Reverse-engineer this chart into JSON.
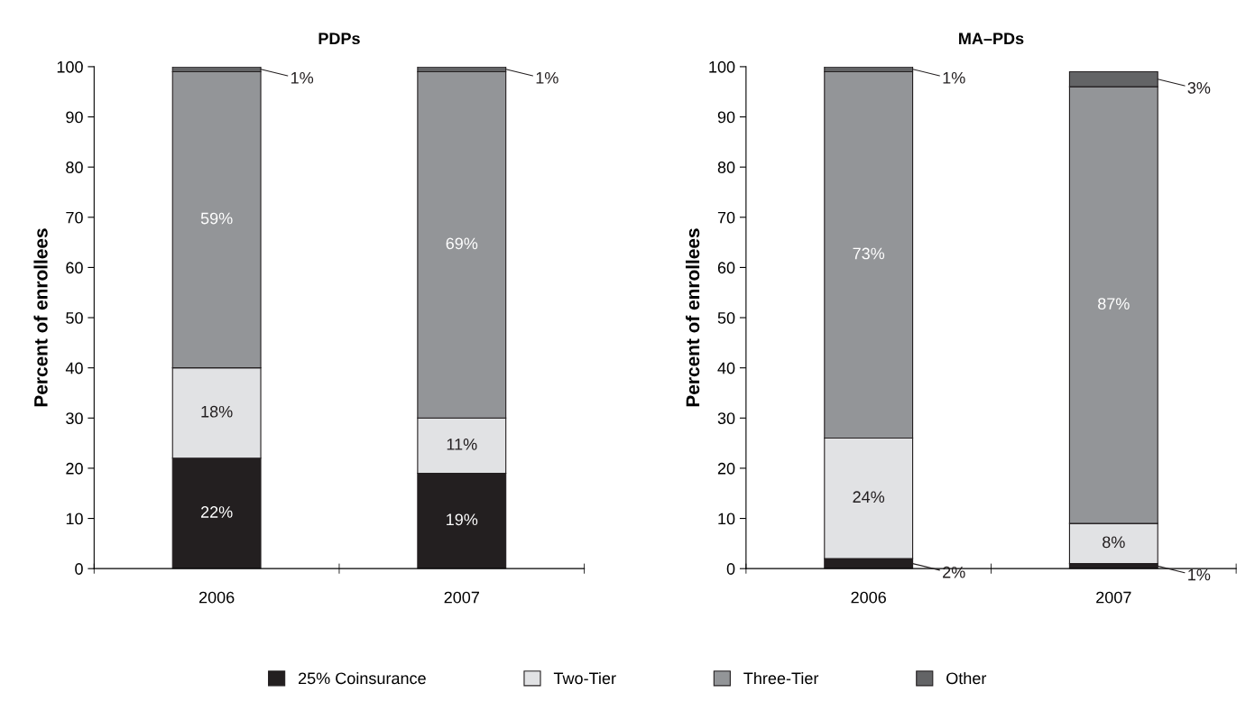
{
  "chart_data": [
    {
      "type": "bar",
      "title": "PDPs",
      "ylabel": "Percent of enrollees",
      "categories": [
        "2006",
        "2007"
      ],
      "stacked": true,
      "ylim": [
        0,
        100
      ],
      "yticks": [
        0,
        10,
        20,
        30,
        40,
        50,
        60,
        70,
        80,
        90,
        100
      ],
      "grid": false,
      "legend": "bottom",
      "series": [
        {
          "name": "25% Coinsurance",
          "color": "#231f20",
          "values": [
            22,
            19
          ],
          "value_labels": [
            "22%",
            "19%"
          ]
        },
        {
          "name": "Two-Tier",
          "color": "#e1e2e4",
          "values": [
            18,
            11
          ],
          "value_labels": [
            "18%",
            "11%"
          ]
        },
        {
          "name": "Three-Tier",
          "color": "#939598",
          "values": [
            59,
            69
          ],
          "value_labels": [
            "59%",
            "69%"
          ]
        },
        {
          "name": "Other",
          "color": "#636466",
          "values": [
            1,
            1
          ],
          "value_labels": [
            "1%",
            "1%"
          ]
        }
      ]
    },
    {
      "type": "bar",
      "title": "MA–PDs",
      "ylabel": "Percent of enrollees",
      "categories": [
        "2006",
        "2007"
      ],
      "stacked": true,
      "ylim": [
        0,
        100
      ],
      "yticks": [
        0,
        10,
        20,
        30,
        40,
        50,
        60,
        70,
        80,
        90,
        100
      ],
      "grid": false,
      "series": [
        {
          "color": "#231f20",
          "values": [
            2,
            1
          ],
          "value_labels": [
            "2%",
            "1%"
          ]
        },
        {
          "color": "#e1e2e4",
          "values": [
            24,
            8
          ],
          "value_labels": [
            "24%",
            "8%"
          ]
        },
        {
          "color": "#939598",
          "values": [
            73,
            87
          ],
          "value_labels": [
            "73%",
            "87%"
          ]
        },
        {
          "color": "#636466",
          "values": [
            1,
            3
          ],
          "value_labels": [
            "1%",
            "3%"
          ]
        }
      ]
    }
  ]
}
